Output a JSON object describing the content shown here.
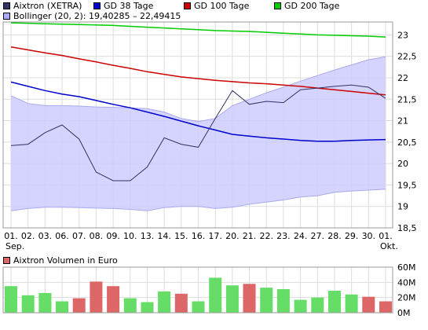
{
  "legend": [
    {
      "label": "Aixtron (XETRA)",
      "color": "#333366"
    },
    {
      "label": "GD 38 Tage",
      "color": "#0000cc"
    },
    {
      "label": "GD 100 Tage",
      "color": "#cc0000"
    },
    {
      "label": "GD 200 Tage",
      "color": "#00cc00"
    },
    {
      "label": "Bollinger (20, 2): 19,40285 – 22,49415",
      "color": "#aaaaff"
    }
  ],
  "volume_legend": {
    "label": "Aixtron Volumen in Euro",
    "color": "#dd6666"
  },
  "chart_data": [
    {
      "type": "line",
      "categories": [
        "01.",
        "02.",
        "03.",
        "06.",
        "07.",
        "08.",
        "09.",
        "10.",
        "13.",
        "14.",
        "15.",
        "16.",
        "17.",
        "20.",
        "21.",
        "22.",
        "23.",
        "24.",
        "27.",
        "28.",
        "29.",
        "30.",
        "01."
      ],
      "month_labels": [
        {
          "index": 0,
          "label": "Sep."
        },
        {
          "index": 22,
          "label": "Okt."
        }
      ],
      "yticks": [
        "23",
        "22,5",
        "22",
        "21,5",
        "21",
        "20,5",
        "20",
        "19,5",
        "19",
        "18,5"
      ],
      "ylim": [
        18.5,
        23.3
      ],
      "grid": true,
      "series": [
        {
          "name": "Aixtron (XETRA)",
          "color": "#333366",
          "values": [
            20.42,
            20.45,
            20.72,
            20.9,
            20.57,
            19.8,
            19.6,
            19.6,
            19.92,
            20.6,
            20.45,
            20.38,
            21.05,
            21.7,
            21.38,
            21.45,
            21.42,
            21.72,
            21.76,
            21.8,
            21.83,
            21.78,
            21.52
          ]
        },
        {
          "name": "GD 38 Tage",
          "color": "#0000cc",
          "values": [
            21.9,
            21.8,
            21.7,
            21.62,
            21.56,
            21.47,
            21.38,
            21.3,
            21.2,
            21.1,
            20.99,
            20.88,
            20.78,
            20.68,
            20.64,
            20.6,
            20.57,
            20.54,
            20.52,
            20.52,
            20.54,
            20.55,
            20.56
          ]
        },
        {
          "name": "GD 100 Tage",
          "color": "#cc0000",
          "values": [
            22.72,
            22.65,
            22.58,
            22.52,
            22.44,
            22.37,
            22.29,
            22.22,
            22.14,
            22.08,
            22.02,
            21.98,
            21.94,
            21.91,
            21.88,
            21.86,
            21.83,
            21.8,
            21.76,
            21.72,
            21.68,
            21.64,
            21.6
          ]
        },
        {
          "name": "GD 200 Tage",
          "color": "#00cc00",
          "values": [
            23.28,
            23.27,
            23.26,
            23.25,
            23.24,
            23.23,
            23.22,
            23.2,
            23.18,
            23.16,
            23.14,
            23.12,
            23.1,
            23.09,
            23.08,
            23.06,
            23.04,
            23.02,
            23.0,
            22.99,
            22.98,
            22.97,
            22.95
          ]
        }
      ],
      "bollinger": {
        "name": "Bollinger (20, 2)",
        "color": "#aaaaff",
        "upper": [
          21.58,
          21.4,
          21.35,
          21.35,
          21.34,
          21.32,
          21.31,
          21.3,
          21.28,
          21.2,
          21.05,
          20.98,
          21.05,
          21.35,
          21.5,
          21.65,
          21.78,
          21.92,
          22.05,
          22.18,
          22.3,
          22.42,
          22.49
        ],
        "lower": [
          18.9,
          18.95,
          18.98,
          18.98,
          18.97,
          18.96,
          18.95,
          18.93,
          18.9,
          18.97,
          19.0,
          19.0,
          18.95,
          18.98,
          19.05,
          19.1,
          19.15,
          19.22,
          19.25,
          19.33,
          19.36,
          19.38,
          19.4
        ]
      }
    },
    {
      "type": "bar",
      "categories": [
        "01.",
        "02.",
        "03.",
        "06.",
        "07.",
        "08.",
        "09.",
        "10.",
        "13.",
        "14.",
        "15.",
        "16.",
        "17.",
        "20.",
        "21.",
        "22.",
        "23.",
        "24.",
        "27.",
        "28.",
        "29.",
        "30.",
        "01."
      ],
      "yticks": [
        "60M",
        "40M",
        "20M",
        "0M"
      ],
      "ylim": [
        0,
        60
      ],
      "values": [
        35,
        23,
        26,
        15,
        19,
        41,
        35,
        19,
        14,
        28,
        25,
        15,
        46,
        36,
        38,
        33,
        31,
        17,
        20,
        29,
        24,
        21,
        15
      ],
      "up": [
        true,
        true,
        true,
        true,
        false,
        false,
        false,
        true,
        true,
        true,
        false,
        true,
        true,
        true,
        false,
        true,
        true,
        true,
        true,
        true,
        true,
        false,
        false
      ],
      "up_color": "#66dd66",
      "down_color": "#dd6666"
    }
  ]
}
